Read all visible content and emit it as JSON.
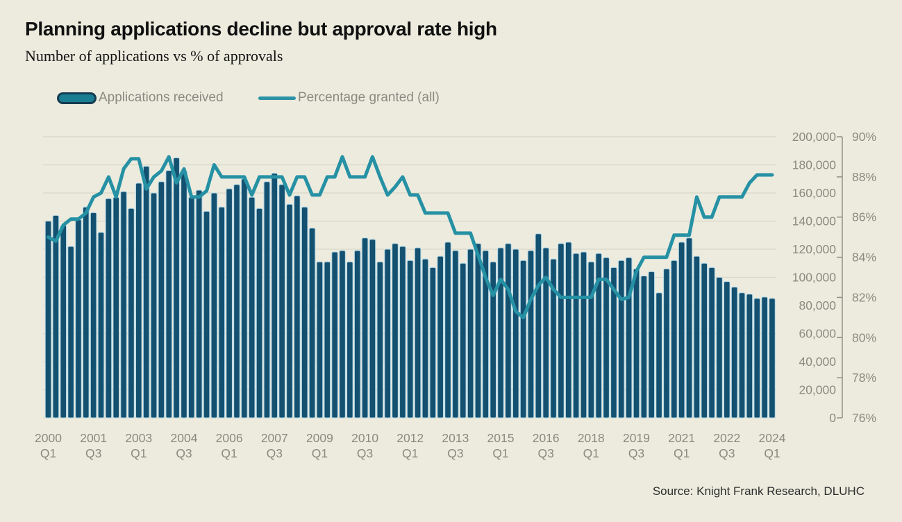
{
  "title": "Planning applications decline but approval rate high",
  "subtitle": "Number of applications vs % of approvals",
  "source_note": "Source: Knight Frank Research, DLUHC",
  "legend": {
    "applications": "Applications received",
    "percentage": "Percentage granted (all)"
  },
  "colors": {
    "background": "#ECEBDE",
    "bar_fill": "#14506F",
    "bar_edge": "#AFD7E8",
    "line": "#2691A4",
    "grid": "#D7D6C7",
    "axis": "#908F86",
    "axis_text": "#8B8A80"
  },
  "chart_data": {
    "type": "bar",
    "title": "Planning applications decline but approval rate high",
    "subtitle": "Number of applications vs % of approvals",
    "grid": "horizontal",
    "legend_position": "top-left",
    "left_axis": {
      "min": 0,
      "max": 200000,
      "step": 20000,
      "tick_labels": [
        "200,000",
        "180,000",
        "160,000",
        "140,000",
        "120,000",
        "100,000",
        "80,000",
        "60,000",
        "40,000",
        "20,000",
        "0"
      ]
    },
    "right_axis": {
      "min": 76,
      "max": 90,
      "step": 2,
      "tick_labels": [
        "90%",
        "88%",
        "86%",
        "84%",
        "82%",
        "80%",
        "78%",
        "76%"
      ]
    },
    "x_tick_indices": [
      0,
      6,
      12,
      18,
      24,
      30,
      36,
      42,
      48,
      54,
      60,
      66,
      72,
      78,
      84,
      90,
      96
    ],
    "x_tick_labels": [
      {
        "year": "2000",
        "quarter": "Q1"
      },
      {
        "year": "2001",
        "quarter": "Q3"
      },
      {
        "year": "2003",
        "quarter": "Q1"
      },
      {
        "year": "2004",
        "quarter": "Q3"
      },
      {
        "year": "2006",
        "quarter": "Q1"
      },
      {
        "year": "2007",
        "quarter": "Q3"
      },
      {
        "year": "2009",
        "quarter": "Q1"
      },
      {
        "year": "2010",
        "quarter": "Q3"
      },
      {
        "year": "2012",
        "quarter": "Q1"
      },
      {
        "year": "2013",
        "quarter": "Q3"
      },
      {
        "year": "2015",
        "quarter": "Q1"
      },
      {
        "year": "2016",
        "quarter": "Q3"
      },
      {
        "year": "2018",
        "quarter": "Q1"
      },
      {
        "year": "2019",
        "quarter": "Q3"
      },
      {
        "year": "2021",
        "quarter": "Q1"
      },
      {
        "year": "2022",
        "quarter": "Q3"
      },
      {
        "year": "2024",
        "quarter": "Q1"
      }
    ],
    "x": [
      "2000 Q1",
      "2000 Q2",
      "2000 Q3",
      "2000 Q4",
      "2001 Q1",
      "2001 Q2",
      "2001 Q3",
      "2001 Q4",
      "2002 Q1",
      "2002 Q2",
      "2002 Q3",
      "2002 Q4",
      "2003 Q1",
      "2003 Q2",
      "2003 Q3",
      "2003 Q4",
      "2004 Q1",
      "2004 Q2",
      "2004 Q3",
      "2004 Q4",
      "2005 Q1",
      "2005 Q2",
      "2005 Q3",
      "2005 Q4",
      "2006 Q1",
      "2006 Q2",
      "2006 Q3",
      "2006 Q4",
      "2007 Q1",
      "2007 Q2",
      "2007 Q3",
      "2007 Q4",
      "2008 Q1",
      "2008 Q2",
      "2008 Q3",
      "2008 Q4",
      "2009 Q1",
      "2009 Q2",
      "2009 Q3",
      "2009 Q4",
      "2010 Q1",
      "2010 Q2",
      "2010 Q3",
      "2010 Q4",
      "2011 Q1",
      "2011 Q2",
      "2011 Q3",
      "2011 Q4",
      "2012 Q1",
      "2012 Q2",
      "2012 Q3",
      "2012 Q4",
      "2013 Q1",
      "2013 Q2",
      "2013 Q3",
      "2013 Q4",
      "2014 Q1",
      "2014 Q2",
      "2014 Q3",
      "2014 Q4",
      "2015 Q1",
      "2015 Q2",
      "2015 Q3",
      "2015 Q4",
      "2016 Q1",
      "2016 Q2",
      "2016 Q3",
      "2016 Q4",
      "2017 Q1",
      "2017 Q2",
      "2017 Q3",
      "2017 Q4",
      "2018 Q1",
      "2018 Q2",
      "2018 Q3",
      "2018 Q4",
      "2019 Q1",
      "2019 Q2",
      "2019 Q3",
      "2019 Q4",
      "2020 Q1",
      "2020 Q2",
      "2020 Q3",
      "2020 Q4",
      "2021 Q1",
      "2021 Q2",
      "2021 Q3",
      "2021 Q4",
      "2022 Q1",
      "2022 Q2",
      "2022 Q3",
      "2022 Q4",
      "2023 Q1",
      "2023 Q2",
      "2023 Q3",
      "2023 Q4",
      "2024 Q1"
    ],
    "series": [
      {
        "name": "Applications received",
        "type": "bar",
        "axis": "left",
        "values": [
          140000,
          144000,
          137000,
          122000,
          141000,
          150000,
          146000,
          132000,
          156000,
          157000,
          161000,
          149000,
          167000,
          179000,
          160000,
          168000,
          176000,
          185000,
          176000,
          157000,
          162000,
          147000,
          160000,
          150000,
          163000,
          166000,
          170000,
          157000,
          149000,
          168000,
          174000,
          166000,
          152000,
          158000,
          150000,
          135000,
          111000,
          111000,
          118000,
          119000,
          111000,
          119000,
          128000,
          127000,
          111000,
          120000,
          124000,
          122000,
          112000,
          121000,
          113000,
          107000,
          115000,
          125000,
          119000,
          110000,
          120000,
          124000,
          119000,
          111000,
          121000,
          124000,
          120000,
          112000,
          119000,
          131000,
          121000,
          113000,
          124000,
          125000,
          117000,
          118000,
          111000,
          117000,
          114000,
          107000,
          112000,
          114000,
          106000,
          101000,
          104000,
          89000,
          106000,
          112000,
          125000,
          128000,
          115000,
          110000,
          107000,
          100000,
          97000,
          93000,
          89000,
          88000,
          85000,
          86000,
          85000
        ]
      },
      {
        "name": "Percentage granted (all)",
        "type": "line",
        "axis": "right",
        "values": [
          85.0,
          84.8,
          85.6,
          85.9,
          85.9,
          86.2,
          87.0,
          87.2,
          88.0,
          87.0,
          88.4,
          88.9,
          88.9,
          87.4,
          88.0,
          88.3,
          89.0,
          87.7,
          88.4,
          87.0,
          87.0,
          87.3,
          88.6,
          88.0,
          88.0,
          88.0,
          88.0,
          87.1,
          88.0,
          88.0,
          88.0,
          88.0,
          87.1,
          88.0,
          88.0,
          87.1,
          87.1,
          88.0,
          88.0,
          89.0,
          88.0,
          88.0,
          88.0,
          89.0,
          88.0,
          87.1,
          87.5,
          88.0,
          87.1,
          87.1,
          86.2,
          86.2,
          86.2,
          86.2,
          85.2,
          85.2,
          85.2,
          84.1,
          83.0,
          82.1,
          82.9,
          82.4,
          81.3,
          81.0,
          81.9,
          82.6,
          83.0,
          82.4,
          82.0,
          82.0,
          82.0,
          82.0,
          82.0,
          82.9,
          82.9,
          82.4,
          81.9,
          82.0,
          83.3,
          84.0,
          84.0,
          84.0,
          84.0,
          85.1,
          85.1,
          85.1,
          87.0,
          86.0,
          86.0,
          87.0,
          87.0,
          87.0,
          87.0,
          87.7,
          88.1,
          88.1,
          88.1
        ]
      }
    ]
  }
}
